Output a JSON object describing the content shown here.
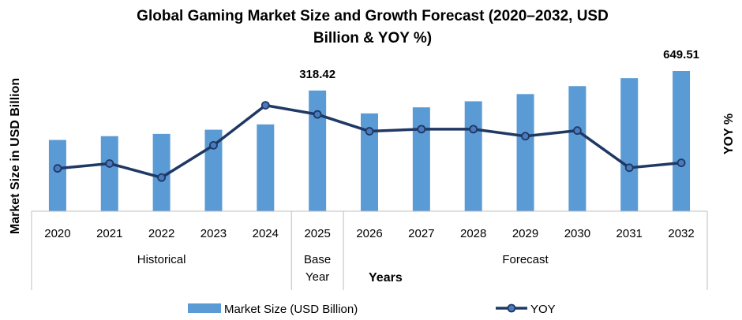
{
  "chart_data": {
    "type": "bar",
    "title_line1": "Global Gaming Market Size and Growth Forecast (2020–2032, USD",
    "title_line2": "Billion & YOY %)",
    "ylabel": "Market Size in USD Billion",
    "y2label": "YOY %",
    "xlabel": "Years",
    "categories": [
      "2020",
      "2021",
      "2022",
      "2023",
      "2024",
      "2025",
      "2026",
      "2027",
      "2028",
      "2029",
      "2030",
      "2031",
      "2032"
    ],
    "series": [
      {
        "name": "Market Size (USD Billion)",
        "type": "bar",
        "color": "#5b9bd5",
        "values": [
          188.0,
          198.0,
          204.0,
          215.0,
          229.0,
          318.42,
          258.0,
          274.0,
          290.0,
          309.0,
          330.0,
          351.0,
          649.51
        ]
      },
      {
        "name": "YOY",
        "type": "line",
        "color": "#1f3864",
        "values": [
          6.1,
          6.8,
          4.8,
          9.4,
          15.1,
          13.8,
          11.4,
          11.7,
          11.7,
          10.7,
          11.5,
          6.2,
          6.9
        ]
      }
    ],
    "bar_max_display": 370,
    "y2lim": [
      0,
      20
    ],
    "data_labels": [
      {
        "index": 5,
        "text": "318.42"
      },
      {
        "index": 12,
        "text": "649.51"
      }
    ],
    "groups": [
      {
        "label": "Historical",
        "label_lines": [
          "Historical"
        ],
        "start": 0,
        "end": 4
      },
      {
        "label": "Base Year",
        "label_lines": [
          "Base",
          "Year"
        ],
        "start": 5,
        "end": 5
      },
      {
        "label": "Forecast",
        "label_lines": [
          "Forecast"
        ],
        "start": 6,
        "end": 12
      }
    ],
    "legend": {
      "position": "bottom",
      "items": [
        "Market Size (USD Billion)",
        "YOY"
      ]
    },
    "grid": false
  }
}
